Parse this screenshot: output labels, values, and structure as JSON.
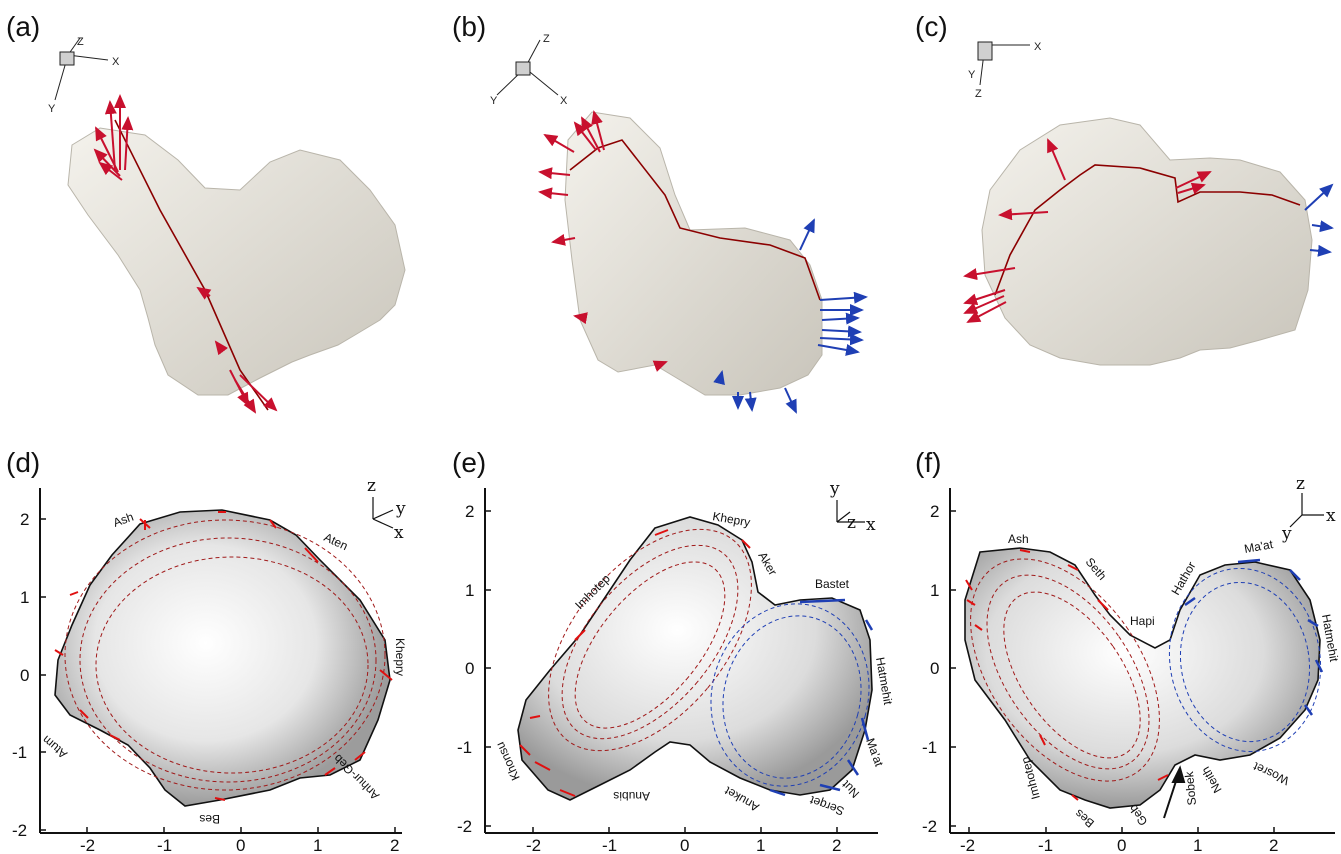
{
  "panels": {
    "a": "(a)",
    "b": "(b)",
    "c": "(c)",
    "d": "(d)",
    "e": "(e)",
    "f": "(f)"
  },
  "axes3d": {
    "a": {
      "x": "X",
      "y": "Y",
      "z": "Z"
    },
    "b": {
      "x": "X",
      "y": "Y",
      "z": "Z"
    },
    "c": {
      "x": "X",
      "y": "Y",
      "z": "Z"
    }
  },
  "triad": {
    "d": {
      "u": "z",
      "v": "y",
      "w": "x"
    },
    "e": {
      "u": "y",
      "v": "z",
      "w": "x"
    },
    "f": {
      "u": "z",
      "v": "y",
      "w": "x"
    }
  },
  "ticks": {
    "d": {
      "x": [
        "-2",
        "-1",
        "0",
        "1",
        "2"
      ],
      "y": [
        "2",
        "1",
        "0",
        "-1",
        "-2"
      ]
    },
    "e": {
      "x": [
        "-2",
        "-1",
        "0",
        "1",
        "2"
      ],
      "y": [
        "2",
        "1",
        "0",
        "-1",
        "-2"
      ]
    },
    "f": {
      "x": [
        "-2",
        "-1",
        "0",
        "1",
        "2"
      ],
      "y": [
        "2",
        "1",
        "0",
        "-1",
        "-2"
      ]
    }
  },
  "regions": {
    "d": [
      "Ash",
      "Aten",
      "Khepry",
      "Atum",
      "Anhur-Geb",
      "Bes"
    ],
    "e": [
      "Khepry",
      "Aker",
      "Imhotep",
      "Bastet",
      "Hatmehit",
      "Ma'at",
      "Nut",
      "Serqet",
      "Anuket",
      "Anubis",
      "Khonsu"
    ],
    "f": [
      "Ash",
      "Seth",
      "Hapi",
      "Hathor",
      "Ma'at",
      "Hatmehit",
      "Wosret",
      "Neith",
      "Sobek",
      "Geb",
      "Bes",
      "Imhotep"
    ]
  },
  "colors": {
    "red": "#c8102e",
    "blue": "#1f3fb4",
    "dark_red": "#8b0000",
    "comet": "#e9e6df"
  }
}
